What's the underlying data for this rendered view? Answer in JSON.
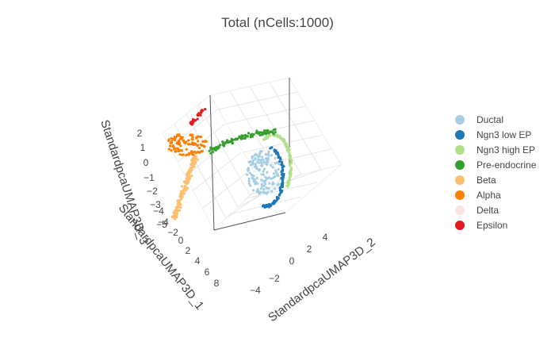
{
  "chart_data": {
    "type": "scatter",
    "title": "Total (nCells:1000)",
    "axes": {
      "x": {
        "label": "StandardpcaUMAP3D_1",
        "ticks": [
          "8",
          "6",
          "4",
          "2",
          "0",
          "−2",
          "−4"
        ]
      },
      "y": {
        "label": "StandardpcaUMAP3D_2",
        "ticks": [
          "−4",
          "−2",
          "0",
          "2",
          "4"
        ]
      },
      "z": {
        "label": "StandardpcaUMAP3D_3",
        "ticks": [
          "2",
          "1",
          "0",
          "−1",
          "−2",
          "−3",
          "−4",
          "−5"
        ]
      }
    },
    "grid": true,
    "legend_position": "right",
    "series": [
      {
        "name": "Ductal",
        "color": "#a6cee3",
        "visible": true
      },
      {
        "name": "Ngn3 low EP",
        "color": "#1f78b4",
        "visible": true
      },
      {
        "name": "Ngn3 high EP",
        "color": "#b2df8a",
        "visible": true
      },
      {
        "name": "Pre-endocrine",
        "color": "#33a02c",
        "visible": true
      },
      {
        "name": "Beta",
        "color": "#fdbf6f",
        "visible": true
      },
      {
        "name": "Alpha",
        "color": "#ff7f00",
        "visible": true
      },
      {
        "name": "Delta",
        "color": "#fbc5c5",
        "visible": false
      },
      {
        "name": "Epsilon",
        "color": "#e31a1c",
        "visible": true
      }
    ]
  }
}
